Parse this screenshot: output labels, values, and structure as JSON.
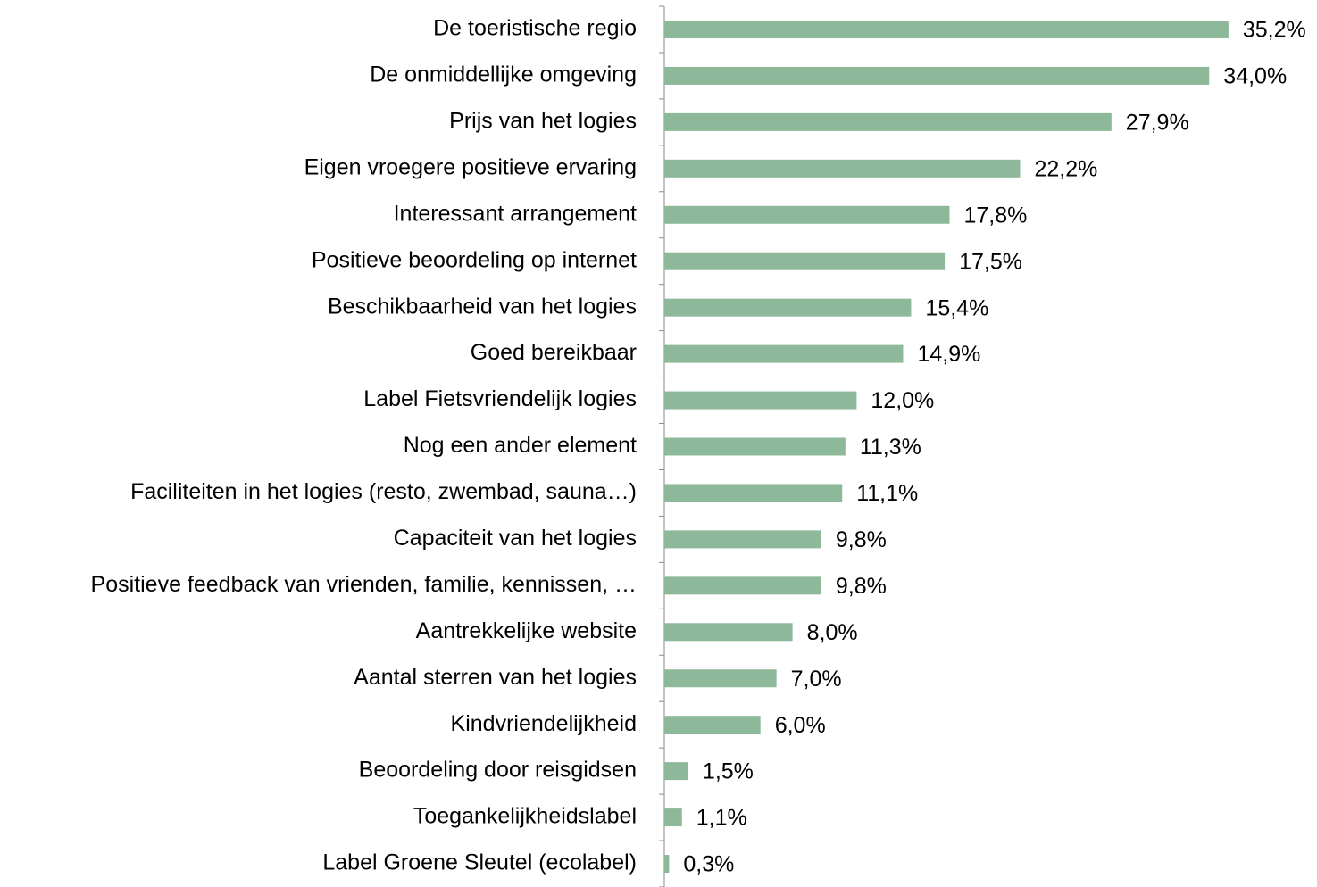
{
  "chart_data": {
    "type": "barh",
    "categories": [
      "De toeristische regio",
      "De onmiddellijke omgeving",
      "Prijs van het logies",
      "Eigen vroegere positieve ervaring",
      "Interessant arrangement",
      "Positieve beoordeling op internet",
      "Beschikbaarheid van het logies",
      "Goed bereikbaar",
      "Label Fietsvriendelijk logies",
      "Nog een ander element",
      "Faciliteiten in het logies (resto, zwembad, sauna…)",
      "Capaciteit van het logies",
      "Positieve feedback van vrienden, familie, kennissen, …",
      "Aantrekkelijke website",
      "Aantal sterren van het logies",
      "Kindvriendelijkheid",
      "Beoordeling door reisgidsen",
      "Toegankelijkheidslabel",
      "Label Groene Sleutel (ecolabel)"
    ],
    "values": [
      35.2,
      34.0,
      27.9,
      22.2,
      17.8,
      17.5,
      15.4,
      14.9,
      12.0,
      11.3,
      11.1,
      9.8,
      9.8,
      8.0,
      7.0,
      6.0,
      1.5,
      1.1,
      0.3
    ],
    "value_labels": [
      "35,2%",
      "34,0%",
      "27,9%",
      "22,2%",
      "17,8%",
      "17,5%",
      "15,4%",
      "14,9%",
      "12,0%",
      "11,3%",
      "11,1%",
      "9,8%",
      "9,8%",
      "8,0%",
      "7,0%",
      "6,0%",
      "1,5%",
      "1,1%",
      "0,3%"
    ],
    "color": "#8db89a",
    "xlim": [
      0,
      40
    ]
  }
}
